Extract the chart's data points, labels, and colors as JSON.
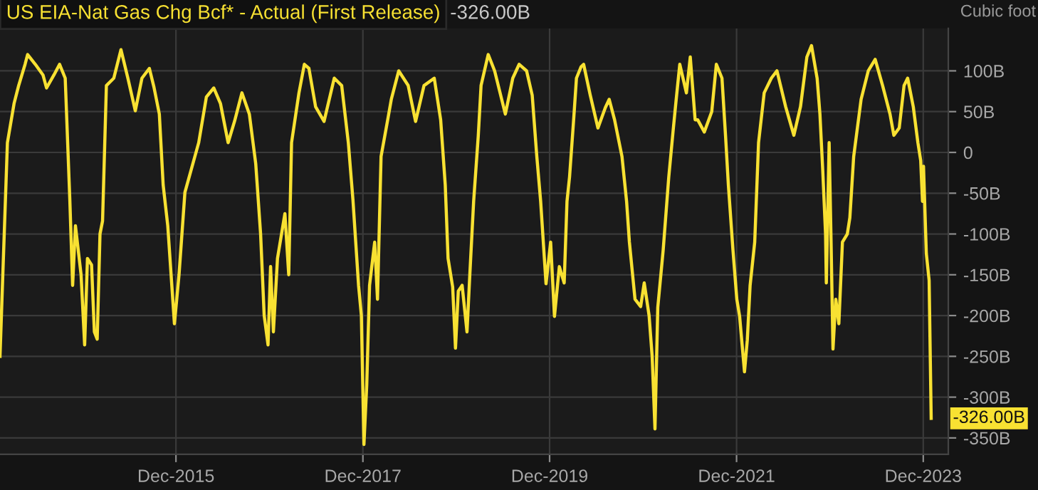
{
  "chart_data": {
    "type": "line",
    "title": "US EIA-Nat Gas Chg Bcf* - Actual (First Release)",
    "subtitle": "-326.00B",
    "ylabel": "Cubic foot",
    "x": [
      "2014-01-12",
      "2014-01-23",
      "2014-02-10",
      "2014-03-08",
      "2014-03-26",
      "2014-04-20",
      "2014-04-30",
      "2014-05-30",
      "2014-06-29",
      "2014-07-13",
      "2014-08-11",
      "2014-09-02",
      "2014-09-24",
      "2014-10-12",
      "2014-10-23",
      "2014-11-03",
      "2014-11-25",
      "2014-12-09",
      "2014-12-20",
      "2015-01-05",
      "2015-01-16",
      "2015-01-27",
      "2015-02-07",
      "2015-02-17",
      "2015-03-04",
      "2015-04-02",
      "2015-04-30",
      "2015-05-27",
      "2015-06-25",
      "2015-07-21",
      "2015-08-19",
      "2015-09-06",
      "2015-09-27",
      "2015-10-12",
      "2015-10-30",
      "2015-11-25",
      "2015-12-13",
      "2016-01-05",
      "2016-02-28",
      "2016-03-29",
      "2016-04-27",
      "2016-05-23",
      "2016-06-22",
      "2016-07-17",
      "2016-08-15",
      "2016-09-13",
      "2016-10-08",
      "2016-10-27",
      "2016-11-10",
      "2016-11-25",
      "2016-12-05",
      "2016-12-16",
      "2017-01-01",
      "2017-01-30",
      "2017-02-14",
      "2017-02-25",
      "2017-03-26",
      "2017-04-16",
      "2017-05-04",
      "2017-05-30",
      "2017-07-02",
      "2017-08-11",
      "2017-09-09",
      "2017-10-05",
      "2017-10-23",
      "2017-11-14",
      "2017-11-25",
      "2017-12-05",
      "2017-12-16",
      "2017-12-27",
      "2018-01-16",
      "2018-01-27",
      "2018-02-10",
      "2018-03-08",
      "2018-03-22",
      "2018-04-20",
      "2018-05-27",
      "2018-06-25",
      "2018-07-28",
      "2018-09-06",
      "2018-10-01",
      "2018-10-19",
      "2018-10-30",
      "2018-11-17",
      "2018-11-28",
      "2018-12-09",
      "2018-12-24",
      "2019-01-12",
      "2019-01-23",
      "2019-02-07",
      "2019-02-25",
      "2019-03-08",
      "2019-04-05",
      "2019-04-30",
      "2019-06-11",
      "2019-07-10",
      "2019-08-04",
      "2019-09-02",
      "2019-09-24",
      "2019-10-12",
      "2019-10-27",
      "2019-11-17",
      "2019-12-05",
      "2019-12-20",
      "2020-01-08",
      "2020-01-27",
      "2020-02-07",
      "2020-02-17",
      "2020-03-04",
      "2020-03-15",
      "2020-04-02",
      "2020-04-12",
      "2020-05-08",
      "2020-06-07",
      "2020-07-06",
      "2020-07-21",
      "2020-08-11",
      "2020-09-09",
      "2020-09-27",
      "2020-10-08",
      "2020-10-30",
      "2020-11-21",
      "2020-12-05",
      "2020-12-24",
      "2021-01-05",
      "2021-01-16",
      "2021-01-27",
      "2021-02-17",
      "2021-03-11",
      "2021-03-29",
      "2021-04-09",
      "2021-04-23",
      "2021-05-19",
      "2021-06-03",
      "2021-06-22",
      "2021-07-02",
      "2021-07-28",
      "2021-08-26",
      "2021-09-13",
      "2021-10-05",
      "2021-10-19",
      "2021-10-30",
      "2021-11-17",
      "2021-12-02",
      "2021-12-13",
      "2022-01-01",
      "2022-01-12",
      "2022-01-23",
      "2022-02-10",
      "2022-02-25",
      "2022-03-19",
      "2022-04-16",
      "2022-05-08",
      "2022-06-11",
      "2022-07-13",
      "2022-08-08",
      "2022-09-02",
      "2022-09-20",
      "2022-10-12",
      "2022-10-23",
      "2022-11-03",
      "2022-11-14",
      "2022-11-17",
      "2022-11-28",
      "2022-12-05",
      "2022-12-13",
      "2022-12-24",
      "2023-01-05",
      "2023-01-19",
      "2023-02-07",
      "2023-02-17",
      "2023-03-04",
      "2023-04-02",
      "2023-04-30",
      "2023-05-27",
      "2023-06-25",
      "2023-07-24",
      "2023-08-08",
      "2023-08-29",
      "2023-09-17",
      "2023-10-01",
      "2023-10-23",
      "2023-11-10",
      "2023-11-21",
      "2023-11-28",
      "2023-12-02",
      "2023-12-13",
      "2023-12-24",
      "2024-01-01"
    ],
    "series": [
      {
        "color": "#f8e132",
        "values": [
          -250,
          -150,
          12,
          60,
          82,
          108,
          120,
          108,
          95,
          79,
          95,
          108,
          91,
          -58,
          -163,
          -90,
          -150,
          -236,
          -130,
          -138,
          -220,
          -229,
          -100,
          -84,
          82,
          91,
          126,
          91,
          51,
          91,
          103,
          80,
          47,
          -40,
          -90,
          -210,
          -150,
          -49,
          12,
          68,
          79,
          60,
          12,
          38,
          73,
          47,
          -14,
          -100,
          -200,
          -236,
          -140,
          -220,
          -130,
          -75,
          -150,
          12,
          73,
          108,
          103,
          56,
          38,
          91,
          82,
          12,
          -58,
          -163,
          -200,
          -358,
          -285,
          -163,
          -110,
          -180,
          -5,
          40,
          65,
          100,
          82,
          38,
          82,
          91,
          40,
          -40,
          -130,
          -165,
          -240,
          -170,
          -163,
          -220,
          -150,
          -60,
          20,
          82,
          120,
          100,
          47,
          91,
          108,
          100,
          70,
          -5,
          -60,
          -161,
          -110,
          -201,
          -140,
          -160,
          -60,
          -30,
          40,
          91,
          105,
          108,
          70,
          30,
          55,
          65,
          40,
          -5,
          -60,
          -110,
          -180,
          -189,
          -160,
          -200,
          -250,
          -339,
          -190,
          -120,
          -30,
          30,
          65,
          108,
          73,
          117,
          40,
          40,
          25,
          50,
          108,
          91,
          20,
          -40,
          -120,
          -180,
          -201,
          -269,
          -230,
          -163,
          -110,
          12,
          73,
          91,
          100,
          56,
          21,
          56,
          117,
          131,
          91,
          47,
          -22,
          -100,
          -160,
          12,
          -100,
          -241,
          -180,
          -210,
          -110,
          -100,
          -80,
          -5,
          65,
          100,
          114,
          82,
          47,
          21,
          30,
          82,
          91,
          56,
          12,
          -10,
          -60,
          -17,
          -124,
          -157,
          -326
        ]
      }
    ],
    "xlim": [
      "2014-01-12",
      "2024-03-08"
    ],
    "xticks": [
      {
        "value": "2015-12-01",
        "label": "Dec-2015"
      },
      {
        "value": "2017-12-01",
        "label": "Dec-2017"
      },
      {
        "value": "2019-12-01",
        "label": "Dec-2019"
      },
      {
        "value": "2021-12-01",
        "label": "Dec-2021"
      },
      {
        "value": "2023-12-01",
        "label": "Dec-2023"
      }
    ],
    "ylim": [
      -370,
      152
    ],
    "yticks": [
      {
        "value": 100,
        "label": "100B"
      },
      {
        "value": 50,
        "label": "50B"
      },
      0,
      {
        "value": -50,
        "label": "-50B"
      },
      {
        "value": -100,
        "label": "-100B"
      },
      {
        "value": -150,
        "label": "-150B"
      },
      {
        "value": -200,
        "label": "-200B"
      },
      {
        "value": -250,
        "label": "-250B"
      },
      {
        "value": -300,
        "label": "-300B"
      },
      {
        "value": -350,
        "label": "-350B"
      }
    ],
    "annotations": [
      {
        "text": "-326.00B",
        "x": "2024-01-01",
        "y": -326
      }
    ],
    "grid": true,
    "legend": false,
    "marker": "none",
    "line_style": "solid"
  }
}
